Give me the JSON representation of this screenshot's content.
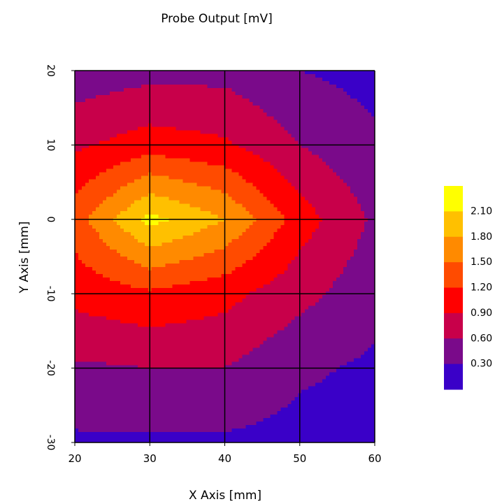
{
  "chart_data": {
    "type": "heatmap",
    "subtype": "filled-contour",
    "title": "Probe Output [mV]",
    "xlabel": "X Axis [mm]",
    "ylabel": "Y Axis [mm]",
    "xlim": [
      20,
      60
    ],
    "ylim": [
      -30,
      20
    ],
    "x_ticks": [
      "20",
      "30",
      "40",
      "50",
      "60"
    ],
    "y_ticks": [
      "20",
      "10",
      "0",
      "-10",
      "-20",
      "-30"
    ],
    "y_tick_values": [
      20,
      10,
      0,
      -10,
      -20,
      -30
    ],
    "x_tick_values": [
      20,
      30,
      40,
      50,
      60
    ],
    "grid": true,
    "legend_position": "right",
    "legend_labels": [
      "2.10",
      "1.80",
      "1.50",
      "1.20",
      "0.90",
      "0.60",
      "0.30"
    ],
    "levels": [
      0.3,
      0.6,
      0.9,
      1.2,
      1.5,
      1.8,
      2.1
    ],
    "colors": [
      "#3a00c8",
      "#7a0a8a",
      "#c8004a",
      "#ff0000",
      "#ff4b00",
      "#ff8a00",
      "#ffc000",
      "#ffff00"
    ],
    "x": [
      20,
      30,
      40,
      50,
      60
    ],
    "y": [
      20,
      10,
      0,
      -10,
      -20,
      -30
    ],
    "z": [
      [
        0.4,
        0.5,
        0.5,
        0.3,
        0.2
      ],
      [
        0.85,
        1.05,
        0.95,
        0.6,
        0.35
      ],
      [
        1.35,
        2.2,
        1.8,
        1.05,
        0.55
      ],
      [
        1.0,
        1.15,
        1.0,
        0.7,
        0.4
      ],
      [
        0.55,
        0.6,
        0.6,
        0.35,
        0.25
      ],
      [
        0.25,
        0.25,
        0.25,
        0.2,
        0.2
      ]
    ]
  }
}
